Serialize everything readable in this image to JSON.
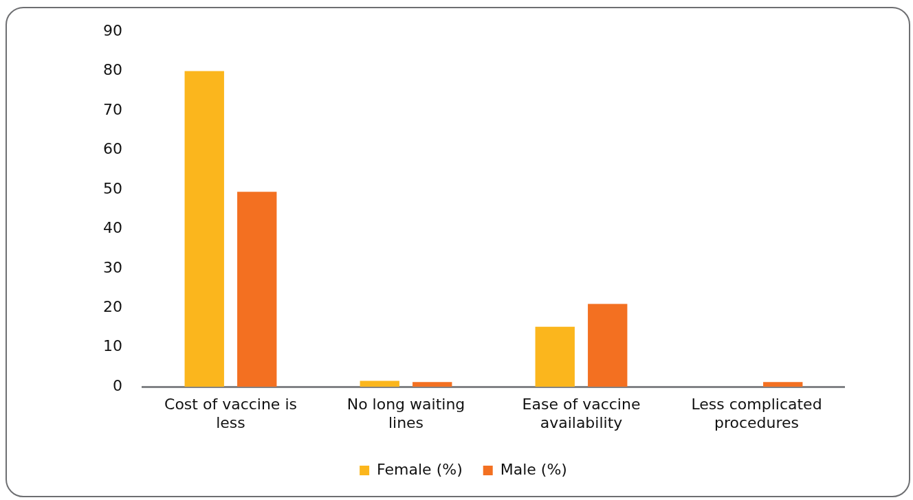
{
  "chart_data": {
    "type": "bar",
    "categories": [
      "Cost of vaccine is less",
      "No long waiting lines",
      "Ease of vaccine availability",
      "Less complicated procedures"
    ],
    "series": [
      {
        "name": "Female (%)",
        "color": "#fbb61d",
        "values": [
          80,
          1.5,
          15.2,
          0
        ]
      },
      {
        "name": "Male (%)",
        "color": "#f37021",
        "values": [
          49.4,
          1.2,
          21,
          1.2
        ]
      }
    ],
    "ylim": [
      0,
      90
    ],
    "yticks": [
      0,
      10,
      20,
      30,
      40,
      50,
      60,
      70,
      80,
      90
    ],
    "grid": false,
    "legend": "bottom"
  }
}
